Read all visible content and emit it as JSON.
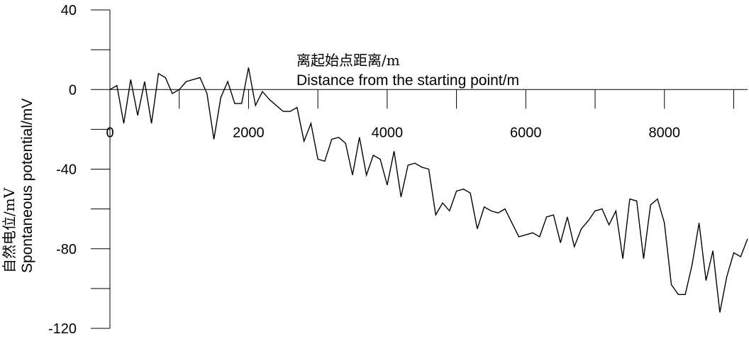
{
  "chart_data": {
    "type": "line",
    "xlabel_cn": "离起始点距离/m",
    "xlabel_en": "Distance from the starting point/m",
    "ylabel_cn": "自然电位/mV",
    "ylabel_en": "Spontaneous potential/mV",
    "xlim": [
      0,
      9200
    ],
    "ylim": [
      -120,
      40
    ],
    "x_ticks": [
      0,
      2000,
      4000,
      6000,
      8000
    ],
    "y_ticks": [
      40,
      0,
      -40,
      -80,
      -120
    ],
    "grid": false,
    "series": [
      {
        "color": "#000000",
        "x": [
          0,
          100,
          200,
          300,
          400,
          500,
          600,
          700,
          800,
          900,
          1000,
          1100,
          1200,
          1300,
          1400,
          1500,
          1600,
          1700,
          1800,
          1900,
          2000,
          2100,
          2200,
          2300,
          2400,
          2500,
          2600,
          2700,
          2800,
          2900,
          3000,
          3100,
          3200,
          3300,
          3400,
          3500,
          3600,
          3700,
          3800,
          3900,
          4000,
          4100,
          4200,
          4300,
          4400,
          4500,
          4600,
          4700,
          4800,
          4900,
          5000,
          5100,
          5200,
          5300,
          5400,
          5500,
          5600,
          5700,
          5800,
          5900,
          6000,
          6100,
          6200,
          6300,
          6400,
          6500,
          6600,
          6700,
          6800,
          6900,
          7000,
          7100,
          7200,
          7300,
          7400,
          7500,
          7600,
          7700,
          7800,
          7900,
          8000,
          8100,
          8200,
          8300,
          8400,
          8500,
          8600,
          8700,
          8800,
          8900,
          9000,
          9100,
          9200
        ],
        "y": [
          0,
          2,
          -17,
          5,
          -13,
          4,
          -17,
          8,
          6,
          -2,
          0,
          4,
          5,
          6,
          -2,
          -25,
          -4,
          4,
          -7,
          -7,
          11,
          -8,
          -1,
          -5,
          -8,
          -11,
          -11,
          -9,
          -26,
          -17,
          -35,
          -36,
          -25,
          -24,
          -27,
          -43,
          -24,
          -43,
          -33,
          -35,
          -48,
          -31,
          -54,
          -38,
          -37,
          -39,
          -40,
          -63,
          -57,
          -61,
          -51,
          -50,
          -52,
          -70,
          -59,
          -61,
          -62,
          -60,
          -67,
          -74,
          -73,
          -72,
          -74,
          -64,
          -63,
          -77,
          -64,
          -79,
          -70,
          -66,
          -61,
          -60,
          -68,
          -61,
          -85,
          -55,
          -56,
          -85,
          -58,
          -55,
          -67,
          -98,
          -103,
          -103,
          -88,
          -67,
          -96,
          -81,
          -112,
          -94,
          -82,
          -84,
          -75
        ]
      }
    ]
  }
}
